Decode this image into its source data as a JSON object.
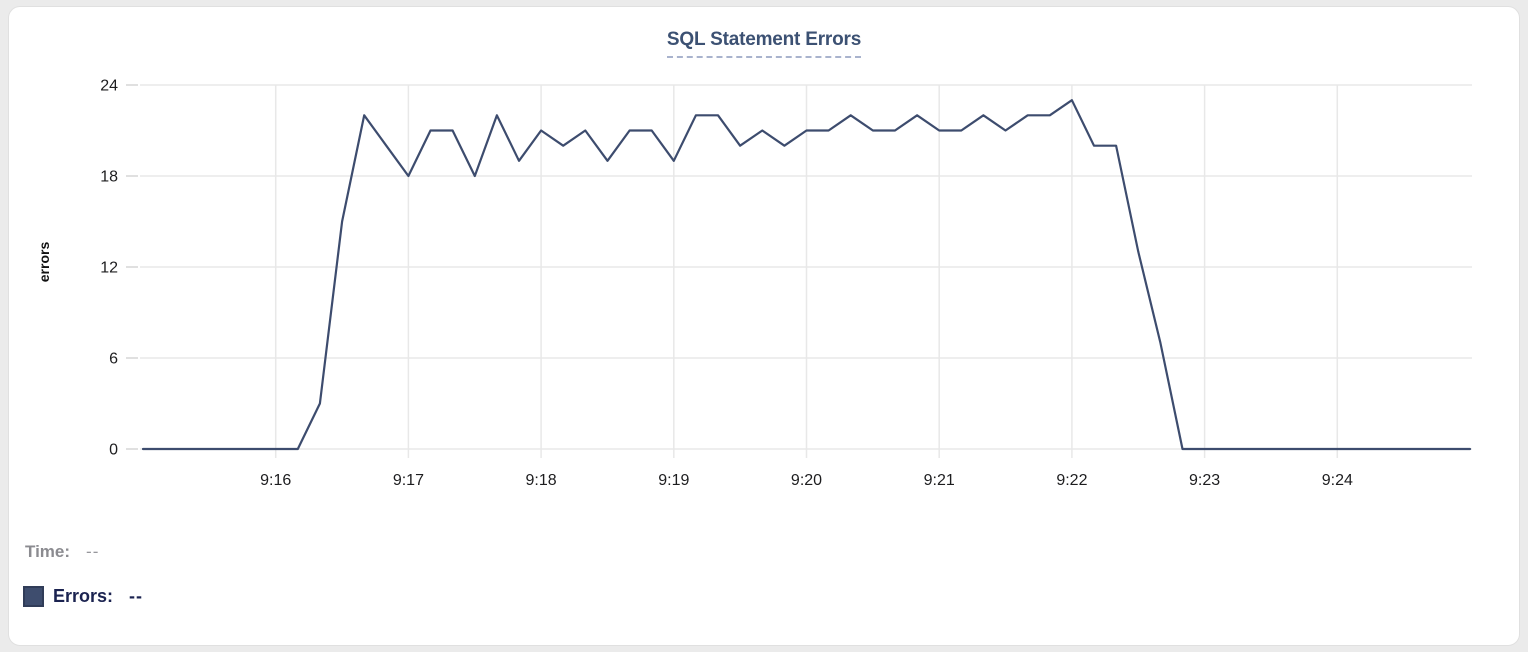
{
  "chart_data": {
    "type": "line",
    "title": "SQL Statement Errors",
    "xlabel": "",
    "ylabel": "errors",
    "ylim": [
      0,
      24
    ],
    "y_ticks": [
      0,
      6,
      12,
      18,
      24
    ],
    "x_tick_labels": [
      "9:16",
      "9:17",
      "9:18",
      "9:19",
      "9:20",
      "9:21",
      "9:22",
      "9:23",
      "9:24"
    ],
    "grid": true,
    "legend_position": "none",
    "sample_interval_seconds": 10,
    "x": [
      "9:15:00",
      "9:15:10",
      "9:15:20",
      "9:15:30",
      "9:15:40",
      "9:15:50",
      "9:16:00",
      "9:16:10",
      "9:16:20",
      "9:16:30",
      "9:16:40",
      "9:16:50",
      "9:17:00",
      "9:17:10",
      "9:17:20",
      "9:17:30",
      "9:17:40",
      "9:17:50",
      "9:18:00",
      "9:18:10",
      "9:18:20",
      "9:18:30",
      "9:18:40",
      "9:18:50",
      "9:19:00",
      "9:19:10",
      "9:19:20",
      "9:19:30",
      "9:19:40",
      "9:19:50",
      "9:20:00",
      "9:20:10",
      "9:20:20",
      "9:20:30",
      "9:20:40",
      "9:20:50",
      "9:21:00",
      "9:21:10",
      "9:21:20",
      "9:21:30",
      "9:21:40",
      "9:21:50",
      "9:22:00",
      "9:22:10",
      "9:22:20",
      "9:22:30",
      "9:22:40",
      "9:22:50",
      "9:23:00",
      "9:23:10",
      "9:23:20",
      "9:23:30",
      "9:23:40",
      "9:23:50",
      "9:24:00",
      "9:24:10",
      "9:24:20",
      "9:24:30",
      "9:24:40",
      "9:24:50",
      "9:25:00"
    ],
    "series": [
      {
        "name": "Errors",
        "color": "#3d4c6e",
        "values": [
          0,
          0,
          0,
          0,
          0,
          0,
          0,
          0,
          3,
          15,
          22,
          20,
          18,
          21,
          21,
          18,
          22,
          19,
          21,
          20,
          21,
          19,
          21,
          21,
          19,
          22,
          22,
          20,
          21,
          20,
          21,
          21,
          22,
          21,
          21,
          22,
          21,
          21,
          22,
          21,
          22,
          22,
          23,
          20,
          20,
          13,
          7,
          0,
          0,
          0,
          0,
          0,
          0,
          0,
          0,
          0,
          0,
          0,
          0,
          0,
          0
        ]
      }
    ]
  },
  "tooltip": {
    "time_label": "Time:",
    "time_value": "--",
    "errors_label": "Errors:",
    "errors_value": "--"
  },
  "colors": {
    "line": "#3d4c6e",
    "title": "#3c5173",
    "title_underline": "#a9b3cd",
    "grid": "#e8e8e8",
    "tick_stub": "#e0e0e0",
    "tick_text": "#1d1d1f",
    "time_text": "#8b8b90",
    "errors_text": "#1b2350",
    "swatch_fill": "#3e4d6e",
    "card_border": "#e0e0e0",
    "card_bg": "#ffffff"
  }
}
